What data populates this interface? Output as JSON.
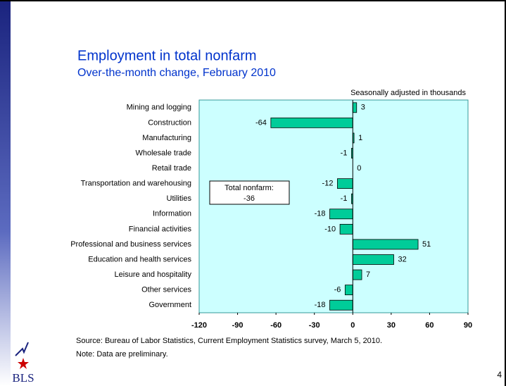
{
  "chart_data": {
    "type": "bar",
    "orientation": "horizontal",
    "title": "Employment in total nonfarm",
    "subtitle": "Over-the-month change, February 2010",
    "unit_note": "Seasonally adjusted in thousands",
    "categories": [
      "Mining and logging",
      "Construction",
      "Manufacturing",
      "Wholesale trade",
      "Retail trade",
      "Transportation and warehousing",
      "Utilities",
      "Information",
      "Financial activities",
      "Professional and business services",
      "Education and health services",
      "Leisure and hospitality",
      "Other services",
      "Government"
    ],
    "values": [
      3,
      -64,
      1,
      -1,
      0,
      -12,
      -1,
      -18,
      -10,
      51,
      32,
      7,
      -6,
      -18
    ],
    "color": "#00cc99",
    "xlim": [
      -120,
      90
    ],
    "xticks": [
      -120,
      -90,
      -60,
      -30,
      0,
      30,
      60,
      90
    ],
    "annotation": {
      "label": "Total nonfarm:",
      "value": -36
    },
    "source": "Source:  Bureau of Labor Statistics, Current Employment Statistics survey, March 5, 2010.",
    "note": "Note:  Data are preliminary.",
    "logo": "BLS",
    "page_number": 4
  }
}
